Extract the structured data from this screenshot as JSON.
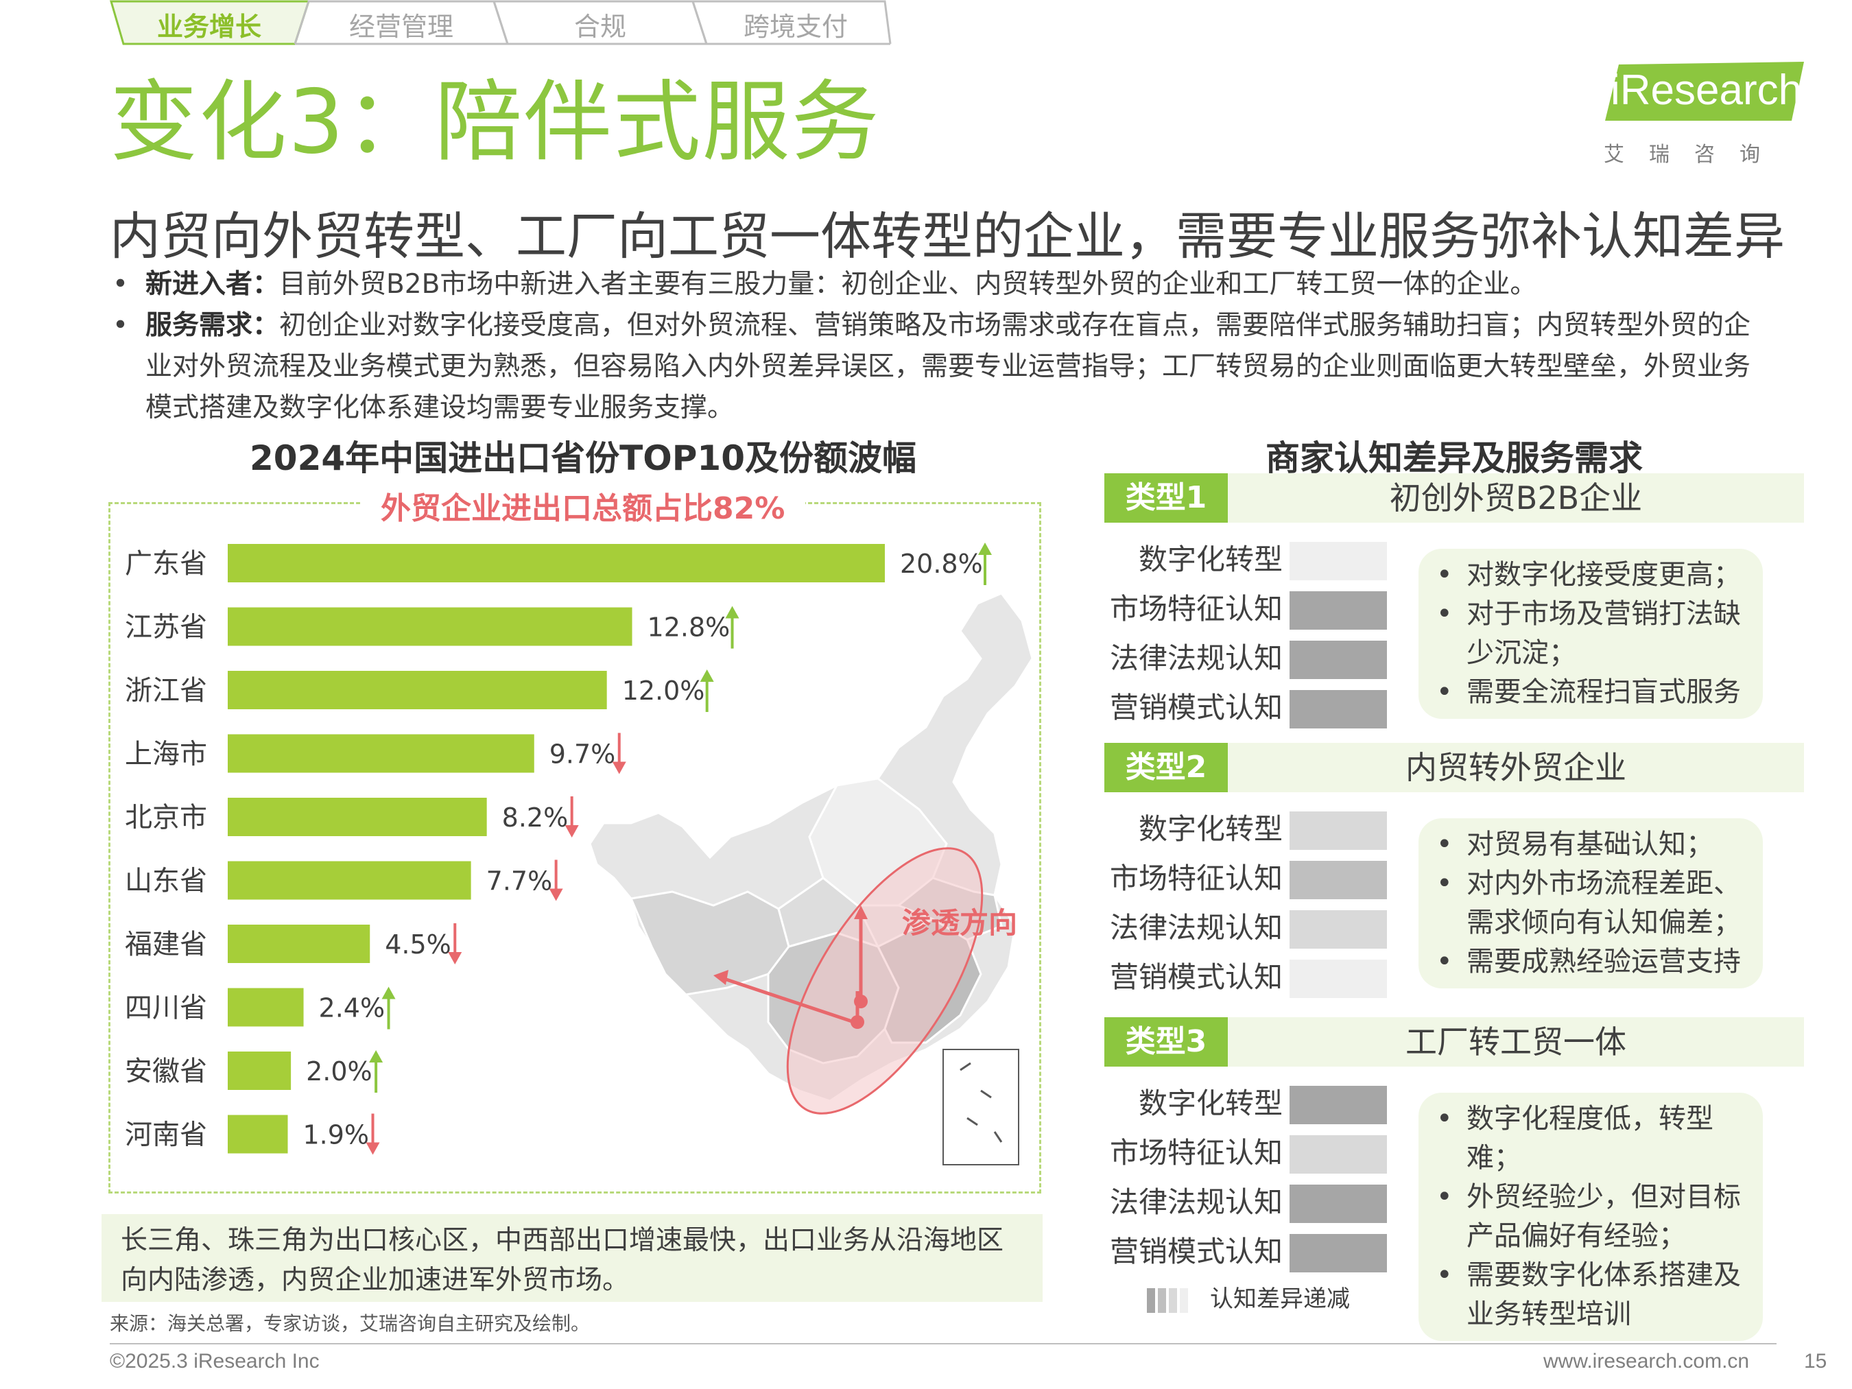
{
  "tabs": [
    "业务增长",
    "经营管理",
    "合规",
    "跨境支付"
  ],
  "title": "变化3：陪伴式服务",
  "logo": {
    "brand": "iResearch",
    "sub": "艾瑞咨询"
  },
  "subtitle": "内贸向外贸转型、工厂向工贸一体转型的企业，需要专业服务弥补认知差异",
  "bullets": [
    {
      "label": "新进入者：",
      "text": "目前外贸B2B市场中新进入者主要有三股力量：初创企业、内贸转型外贸的企业和工厂转工贸一体的企业。"
    },
    {
      "label": "服务需求：",
      "text": "初创企业对数字化接受度高，但对外贸流程、营销策略及市场需求或存在盲点，需要陪伴式服务辅助扫盲；内贸转型外贸的企业对外贸流程及业务模式更为熟悉，但容易陷入内外贸差异误区，需要专业运营指导；工厂转贸易的企业则面临更大转型壁垒，外贸业务模式搭建及数字化体系建设均需要专业服务支撑。"
    }
  ],
  "chart_data": {
    "type": "bar",
    "title": "2024年中国进出口省份TOP10及份额波幅",
    "banner": "外贸企业进出口总额占比82%",
    "categories": [
      "广东省",
      "江苏省",
      "浙江省",
      "上海市",
      "北京市",
      "山东省",
      "福建省",
      "四川省",
      "安徽省",
      "河南省"
    ],
    "values": [
      20.8,
      12.8,
      12.0,
      9.7,
      8.2,
      7.7,
      4.5,
      2.4,
      2.0,
      1.9
    ],
    "value_labels": [
      "20.8%",
      "12.8%",
      "12.0%",
      "9.7%",
      "8.2%",
      "7.7%",
      "4.5%",
      "2.4%",
      "2.0%",
      "1.9%"
    ],
    "trend": [
      "up",
      "up",
      "up",
      "down",
      "down",
      "down",
      "down",
      "up",
      "up",
      "down"
    ],
    "unit": "%",
    "bar_color": "#a6ce39",
    "up_color": "#8cc63f",
    "down_color": "#e8686c",
    "map_annotation": "渗透方向"
  },
  "note": "长三角、珠三角为出口核心区，中西部出口增速最快，出口业务从沿海地区向内陆渗透，内贸企业加速进军外贸市场。",
  "source": "来源：海关总署，专家访谈，艾瑞咨询自主研究及绘制。",
  "right_panel": {
    "title": "商家认知差异及服务需求",
    "metrics": [
      "数字化转型",
      "市场特征认知",
      "法律法规认知",
      "营销模式认知"
    ],
    "types": [
      {
        "tag": "类型1",
        "name": "初创外贸B2B企业",
        "shades": [
          "#efefef",
          "#a6a6a6",
          "#a6a6a6",
          "#a6a6a6"
        ],
        "desc": [
          "对数字化接受度更高；",
          "对于市场及营销打法缺少沉淀；",
          "需要全流程扫盲式服务"
        ]
      },
      {
        "tag": "类型2",
        "name": "内贸转外贸企业",
        "shades": [
          "#d9d9d9",
          "#bfbfbf",
          "#d9d9d9",
          "#efefef"
        ],
        "desc": [
          "对贸易有基础认知；",
          "对内外市场流程差距、需求倾向有认知偏差；",
          "需要成熟经验运营支持"
        ]
      },
      {
        "tag": "类型3",
        "name": "工厂转工贸一体",
        "shades": [
          "#a6a6a6",
          "#d9d9d9",
          "#a6a6a6",
          "#a6a6a6"
        ],
        "desc": [
          "数字化程度低，转型难；",
          "外贸经验少，但对目标产品偏好有经验；",
          "需要数字化体系搭建及业务转型培训"
        ]
      }
    ],
    "legend": "认知差异递减",
    "legend_colors": [
      "#a6a6a6",
      "#bfbfbf",
      "#d9d9d9",
      "#efefef"
    ]
  },
  "footer": {
    "copyright": "©2025.3 iResearch Inc",
    "website": "www.iresearch.com.cn",
    "page": "15"
  },
  "colors": {
    "accent": "#8cc63f",
    "highlight": "#e8686c"
  }
}
